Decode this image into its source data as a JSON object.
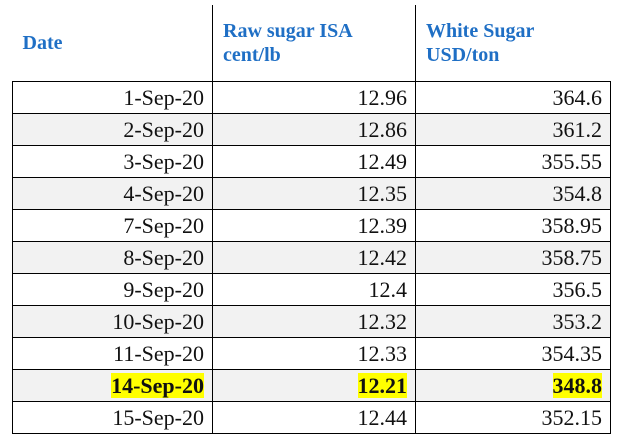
{
  "table": {
    "header": [
      "Date",
      "Raw sugar ISA cent/lb",
      "White Sugar USD/ton"
    ],
    "rows": [
      [
        "1-Sep-20",
        "12.96",
        "364.6"
      ],
      [
        "2-Sep-20",
        "12.86",
        "361.2"
      ],
      [
        "3-Sep-20",
        "12.49",
        "355.55"
      ],
      [
        "4-Sep-20",
        "12.35",
        "354.8"
      ],
      [
        "7-Sep-20",
        "12.39",
        "358.95"
      ],
      [
        "8-Sep-20",
        "12.42",
        "358.75"
      ],
      [
        "9-Sep-20",
        "12.4",
        "356.5"
      ],
      [
        "10-Sep-20",
        "12.32",
        "353.2"
      ],
      [
        "11-Sep-20",
        "12.33",
        "354.35"
      ],
      [
        "14-Sep-20",
        "12.21",
        "348.8"
      ],
      [
        "15-Sep-20",
        "12.44",
        "352.15"
      ]
    ]
  }
}
